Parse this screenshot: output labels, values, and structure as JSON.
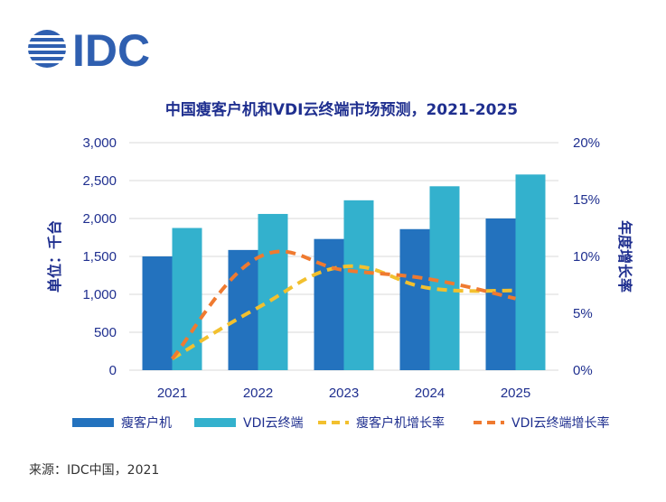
{
  "logo_text": "IDC",
  "source": "来源：IDC中国，2021",
  "colors": {
    "thin_client_bar": "#2372be",
    "vdi_bar": "#33b1cd",
    "thin_client_growth": "#f2c02e",
    "vdi_growth": "#ef7a30",
    "axis_text": "#1f2f8f",
    "gridline": "#d9d9d9"
  },
  "chart_data": {
    "type": "bar",
    "title": "中国瘦客户机和VDI云终端市场预测，2021-2025",
    "categories": [
      "2021",
      "2022",
      "2023",
      "2024",
      "2025"
    ],
    "ylabel": "单位：千台",
    "y2label": "年度增长率",
    "ylim": [
      0,
      3000
    ],
    "yticks": [
      "0",
      "500",
      "1,000",
      "1,500",
      "2,000",
      "2,500",
      "3,000"
    ],
    "y2lim": [
      0,
      20
    ],
    "y2ticks": [
      "0%",
      "5%",
      "10%",
      "15%",
      "20%"
    ],
    "grid": true,
    "legend_position": "bottom",
    "series": [
      {
        "name": "瘦客户机",
        "kind": "bar",
        "axis": "left",
        "color": "#2372be",
        "values": [
          1500,
          1585,
          1730,
          1860,
          2000
        ]
      },
      {
        "name": "VDI云终端",
        "kind": "bar",
        "axis": "left",
        "color": "#33b1cd",
        "values": [
          1875,
          2060,
          2240,
          2425,
          2580
        ]
      },
      {
        "name": "瘦客户机增长率",
        "kind": "line",
        "axis": "right",
        "color": "#f2c02e",
        "values": [
          1.0,
          5.5,
          9.1,
          7.2,
          7.0
        ]
      },
      {
        "name": "VDI云终端增长率",
        "kind": "line",
        "axis": "right",
        "color": "#ef7a30",
        "values": [
          1.0,
          9.9,
          8.8,
          8.0,
          6.3
        ]
      }
    ]
  }
}
